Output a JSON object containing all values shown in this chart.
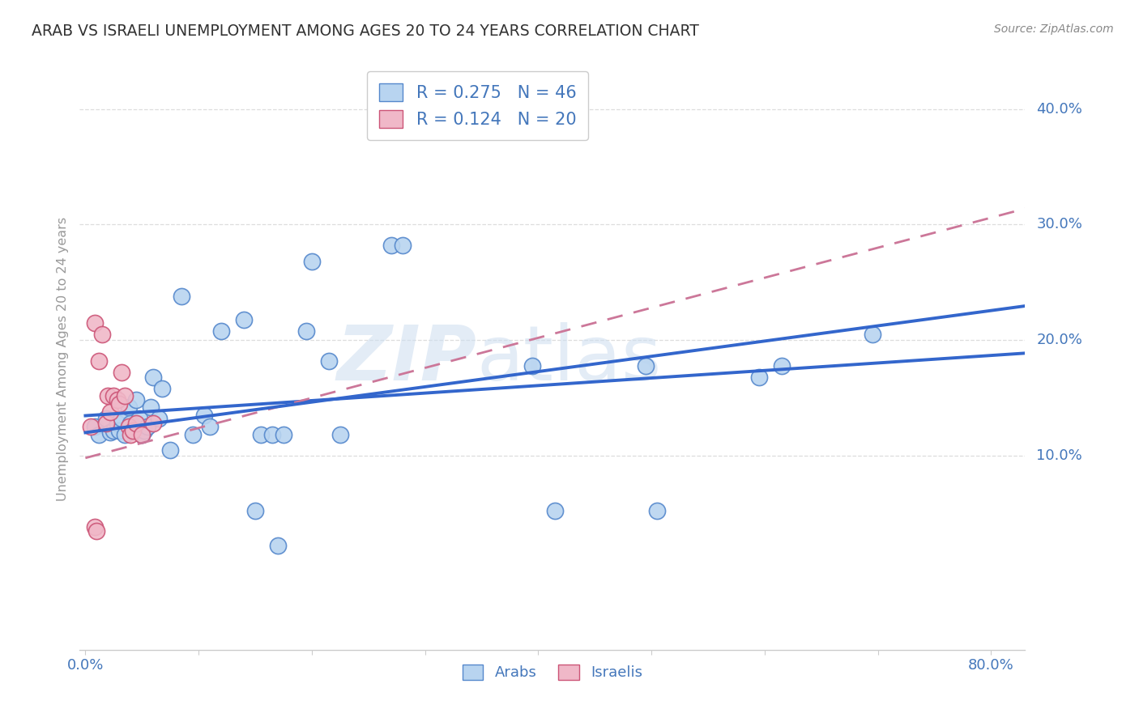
{
  "title": "ARAB VS ISRAELI UNEMPLOYMENT AMONG AGES 20 TO 24 YEARS CORRELATION CHART",
  "source": "Source: ZipAtlas.com",
  "ylabel": "Unemployment Among Ages 20 to 24 years",
  "xlim": [
    -0.005,
    0.83
  ],
  "ylim": [
    -0.068,
    0.435
  ],
  "yticks": [
    0.1,
    0.2,
    0.3,
    0.4
  ],
  "ytick_labels": [
    "10.0%",
    "20.0%",
    "30.0%",
    "40.0%"
  ],
  "xticks": [
    0.0,
    0.1,
    0.2,
    0.3,
    0.4,
    0.5,
    0.6,
    0.7,
    0.8
  ],
  "arab_fill": "#b8d4f0",
  "arab_edge": "#5588cc",
  "israeli_fill": "#f0b8c8",
  "israeli_edge": "#cc5577",
  "arab_line_color": "#3366cc",
  "israeli_line_color": "#cc7799",
  "watermark_color": "#ccddf0",
  "title_color": "#333333",
  "source_color": "#888888",
  "ylabel_color": "#999999",
  "tick_label_color": "#4477bb",
  "grid_color": "#dddddd",
  "axis_color": "#cccccc",
  "legend_text_color": "#4477bb",
  "arab_R": "0.275",
  "arab_N": "46",
  "israeli_R": "0.124",
  "israeli_N": "20",
  "arab_x": [
    0.008,
    0.012,
    0.018,
    0.022,
    0.025,
    0.028,
    0.03,
    0.032,
    0.035,
    0.038,
    0.04,
    0.042,
    0.045,
    0.048,
    0.05,
    0.052,
    0.055,
    0.058,
    0.06,
    0.065,
    0.068,
    0.075,
    0.085,
    0.095,
    0.105,
    0.11,
    0.12,
    0.14,
    0.155,
    0.165,
    0.175,
    0.195,
    0.2,
    0.215,
    0.225,
    0.27,
    0.28,
    0.395,
    0.415,
    0.495,
    0.505,
    0.595,
    0.615,
    0.695,
    0.15,
    0.17
  ],
  "arab_y": [
    0.125,
    0.118,
    0.132,
    0.12,
    0.122,
    0.128,
    0.122,
    0.132,
    0.118,
    0.142,
    0.128,
    0.122,
    0.148,
    0.132,
    0.118,
    0.122,
    0.125,
    0.142,
    0.168,
    0.132,
    0.158,
    0.105,
    0.238,
    0.118,
    0.135,
    0.125,
    0.208,
    0.218,
    0.118,
    0.118,
    0.118,
    0.208,
    0.268,
    0.182,
    0.118,
    0.282,
    0.282,
    0.178,
    0.052,
    0.178,
    0.052,
    0.168,
    0.178,
    0.205,
    0.052,
    0.022
  ],
  "israeli_x": [
    0.005,
    0.008,
    0.012,
    0.015,
    0.018,
    0.02,
    0.022,
    0.025,
    0.028,
    0.03,
    0.032,
    0.035,
    0.038,
    0.04,
    0.042,
    0.045,
    0.05,
    0.06,
    0.008,
    0.01
  ],
  "israeli_y": [
    0.125,
    0.215,
    0.182,
    0.205,
    0.128,
    0.152,
    0.138,
    0.152,
    0.148,
    0.145,
    0.172,
    0.152,
    0.125,
    0.118,
    0.122,
    0.128,
    0.118,
    0.128,
    0.038,
    0.035
  ]
}
